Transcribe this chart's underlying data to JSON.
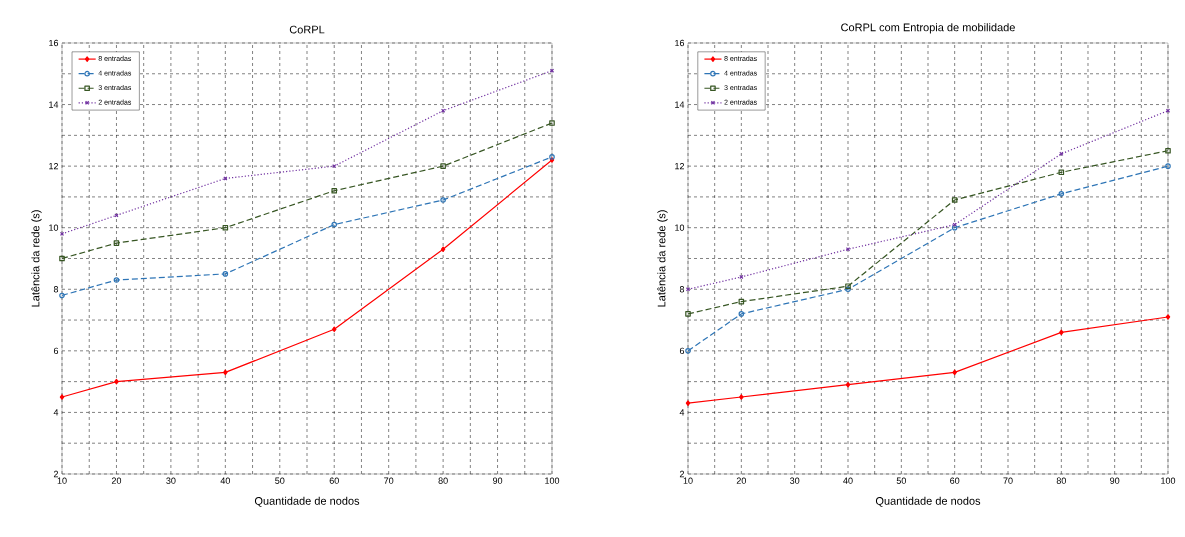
{
  "chart_data": [
    {
      "type": "line",
      "title": "CoRPL",
      "xlabel": "Quantidade de nodos",
      "ylabel": "Latência da rede (s)",
      "x": [
        10,
        20,
        40,
        60,
        80,
        100
      ],
      "xlim": [
        10,
        100
      ],
      "xticks": [
        10,
        20,
        30,
        40,
        50,
        60,
        70,
        80,
        90,
        100
      ],
      "ylim": [
        2,
        16
      ],
      "yticks": [
        2,
        4,
        6,
        8,
        10,
        12,
        14,
        16
      ],
      "grid": true,
      "legend": "top left",
      "series": [
        {
          "name": "8 entradas",
          "color": "#ff0000",
          "marker": "diamond",
          "line_style": "solid",
          "values": [
            4.5,
            5.0,
            5.3,
            6.7,
            9.3,
            12.2
          ]
        },
        {
          "name": "4 entradas",
          "color": "#2e75b6",
          "marker": "circle",
          "line_style": "dashed",
          "values": [
            7.8,
            8.3,
            8.5,
            10.1,
            10.9,
            12.3
          ]
        },
        {
          "name": "3 entradas",
          "color": "#375623",
          "marker": "square",
          "line_style": "dashed",
          "values": [
            9.0,
            9.5,
            10.0,
            11.2,
            12.0,
            13.4
          ]
        },
        {
          "name": "2 entradas",
          "color": "#7030a0",
          "marker": "cross",
          "line_style": "dotted",
          "values": [
            9.8,
            10.4,
            11.6,
            12.0,
            13.8,
            15.1
          ]
        }
      ]
    },
    {
      "type": "line",
      "title": "CoRPL com Entropia de mobilidade",
      "xlabel": "Quantidade de nodos",
      "ylabel": "Latência da rede (s)",
      "x": [
        10,
        20,
        40,
        60,
        80,
        100
      ],
      "xlim": [
        10,
        100
      ],
      "xticks": [
        10,
        20,
        30,
        40,
        50,
        60,
        70,
        80,
        90,
        100
      ],
      "ylim": [
        2,
        16
      ],
      "yticks": [
        2,
        4,
        6,
        8,
        10,
        12,
        14,
        16
      ],
      "grid": true,
      "legend": "top left",
      "series": [
        {
          "name": "8 entradas",
          "color": "#ff0000",
          "marker": "diamond",
          "line_style": "solid",
          "values": [
            4.3,
            4.5,
            4.9,
            5.3,
            6.6,
            7.1
          ]
        },
        {
          "name": "4 entradas",
          "color": "#2e75b6",
          "marker": "circle",
          "line_style": "dashed",
          "values": [
            6.0,
            7.2,
            8.0,
            10.0,
            11.1,
            12.0
          ]
        },
        {
          "name": "3 entradas",
          "color": "#375623",
          "marker": "square",
          "line_style": "dashed",
          "values": [
            7.2,
            7.6,
            8.1,
            10.9,
            11.8,
            12.5
          ]
        },
        {
          "name": "2 entradas",
          "color": "#7030a0",
          "marker": "cross",
          "line_style": "dotted",
          "values": [
            8.0,
            8.4,
            9.3,
            10.1,
            12.4,
            13.8
          ]
        }
      ]
    }
  ]
}
